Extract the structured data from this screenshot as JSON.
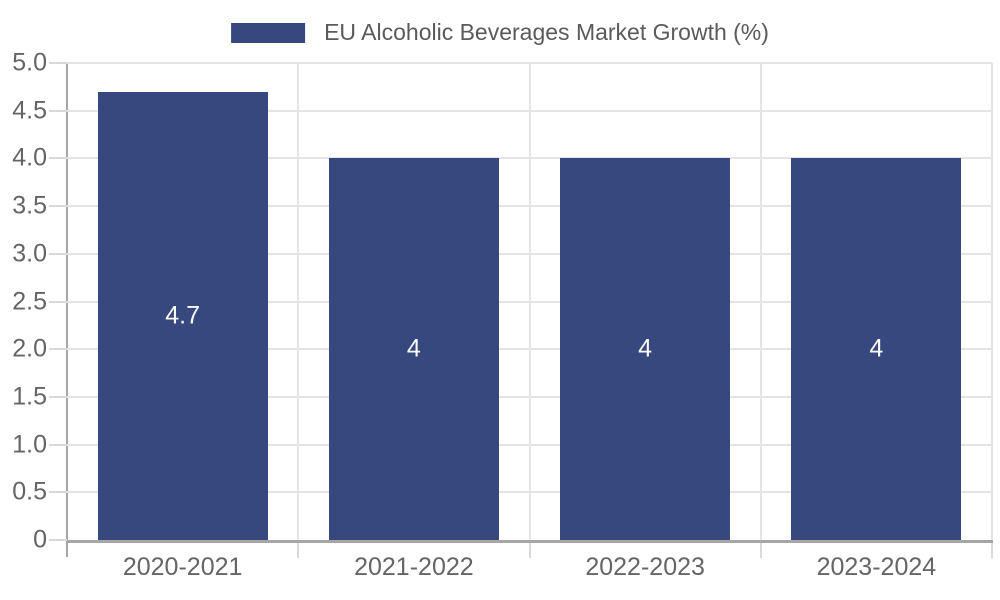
{
  "chart_data": {
    "type": "bar",
    "title": "EU Alcoholic Beverages Market Growth (%)",
    "categories": [
      "2020-2021",
      "2021-2022",
      "2022-2023",
      "2023-2024"
    ],
    "values": [
      4.7,
      4,
      4,
      4
    ],
    "bar_value_labels": [
      "4.7",
      "4",
      "4",
      "4"
    ],
    "series": [
      {
        "name": "EU Alcoholic Beverages Market Growth (%)",
        "values": [
          4.7,
          4,
          4,
          4
        ]
      }
    ],
    "xlabel": "",
    "ylabel": "",
    "ylim": [
      0,
      5
    ],
    "ytick_values": [
      0,
      0.5,
      1,
      1.5,
      2,
      2.5,
      3,
      3.5,
      4,
      4.5,
      5
    ],
    "ytick_labels": [
      "0",
      "0.5",
      "1.0",
      "1.5",
      "2.0",
      "2.5",
      "3.0",
      "3.5",
      "4.0",
      "4.5",
      "5.0"
    ],
    "grid": true,
    "legend_position": "top-center"
  },
  "colors": {
    "bar": "#36487E",
    "grid": "#e4e4e4",
    "tick": "#d9d9d9",
    "axis": "#a6a6a6",
    "legend_text": "#5a5a5a",
    "axis_text": "#656565",
    "value_label": "#fafafa",
    "background": "#ffffff"
  }
}
